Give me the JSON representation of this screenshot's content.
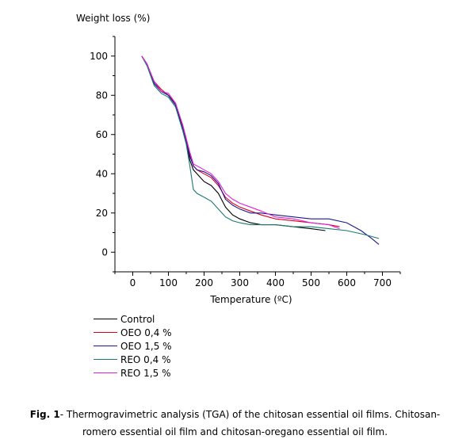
{
  "chart_data": {
    "type": "line",
    "ylabel": "Weight loss (%)",
    "xlabel": "Temperature (ºC)",
    "xlim": [
      -50,
      750
    ],
    "ylim": [
      -10,
      110
    ],
    "x_ticks": [
      0,
      100,
      200,
      300,
      400,
      500,
      600,
      700
    ],
    "y_ticks": [
      0,
      20,
      40,
      60,
      80,
      100
    ],
    "grid": false,
    "legend_position": "below-left",
    "series": [
      {
        "name": "Control",
        "color": "#000000",
        "x": [
          25,
          40,
          60,
          80,
          100,
          120,
          140,
          150,
          160,
          170,
          180,
          200,
          220,
          240,
          260,
          280,
          300,
          330,
          360,
          400,
          450,
          500,
          540
        ],
        "y": [
          100,
          96,
          86,
          82,
          80,
          75,
          63,
          56,
          47,
          42,
          40,
          36,
          34,
          30,
          23,
          19,
          17,
          15,
          14,
          14,
          13,
          12,
          11
        ]
      },
      {
        "name": "OEO 0,4 %",
        "color": "#e0001a",
        "x": [
          25,
          40,
          60,
          80,
          100,
          120,
          140,
          150,
          160,
          170,
          180,
          200,
          220,
          240,
          260,
          280,
          300,
          330,
          360,
          400,
          450,
          500,
          550,
          580
        ],
        "y": [
          100,
          96,
          87,
          83,
          80,
          76,
          64,
          57,
          50,
          44,
          42,
          40,
          38,
          34,
          28,
          25,
          23,
          21,
          19,
          17,
          16,
          15,
          14,
          13
        ]
      },
      {
        "name": "OEO 1,5 %",
        "color": "#1a1a8c",
        "x": [
          25,
          40,
          60,
          80,
          100,
          120,
          140,
          150,
          160,
          170,
          180,
          200,
          220,
          240,
          260,
          280,
          300,
          330,
          360,
          400,
          450,
          500,
          550,
          600,
          640,
          670,
          690
        ],
        "y": [
          100,
          96,
          86,
          82,
          80,
          75,
          63,
          56,
          49,
          44,
          42,
          41,
          39,
          35,
          27,
          24,
          22,
          20,
          20,
          19,
          18,
          17,
          17,
          15,
          11,
          7,
          4
        ]
      },
      {
        "name": "REO 0,4 %",
        "color": "#1a7a70",
        "x": [
          25,
          40,
          60,
          80,
          100,
          120,
          140,
          150,
          160,
          170,
          180,
          200,
          220,
          240,
          260,
          280,
          300,
          330,
          360,
          400,
          450,
          500,
          550,
          600,
          650,
          690
        ],
        "y": [
          100,
          95,
          85,
          81,
          79,
          74,
          62,
          55,
          44,
          32,
          30,
          28,
          26,
          22,
          18,
          16,
          15,
          14,
          14,
          14,
          13,
          13,
          12,
          11,
          9,
          7
        ]
      },
      {
        "name": "REO 1,5 %",
        "color": "#e020e0",
        "x": [
          25,
          40,
          60,
          80,
          100,
          120,
          140,
          150,
          160,
          170,
          180,
          200,
          220,
          240,
          260,
          280,
          300,
          330,
          360,
          400,
          450,
          500,
          550,
          580
        ],
        "y": [
          100,
          96,
          87,
          82,
          81,
          76,
          65,
          58,
          51,
          45,
          44,
          42,
          40,
          36,
          30,
          27,
          25,
          23,
          21,
          18,
          17,
          15,
          14,
          12
        ]
      }
    ]
  },
  "caption": {
    "bold": "Fig. 1",
    "line1": "- Thermogravimetric analysis (TGA) of the chitosan essential oil films. Chitosan-",
    "line2": "romero essential oil film and chitosan-oregano essential oil film."
  }
}
